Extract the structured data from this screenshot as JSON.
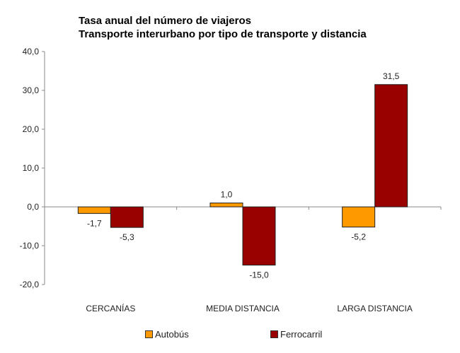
{
  "chart_data": {
    "type": "bar",
    "title": "Tasa anual del número de viajeros",
    "subtitle": "Transporte interurbano por tipo de transporte y distancia",
    "categories": [
      "CERCANÍAS",
      "MEDIA DISTANCIA",
      "LARGA DISTANCIA"
    ],
    "series": [
      {
        "name": "Autobús",
        "color": "#FF9900",
        "values": [
          -1.7,
          1.0,
          -5.2
        ],
        "labels": [
          "-1,7",
          "1,0",
          "-5,2"
        ]
      },
      {
        "name": "Ferrocarril",
        "color": "#990000",
        "values": [
          -5.3,
          -15.0,
          31.5
        ],
        "labels": [
          "-5,3",
          "-15,0",
          "31,5"
        ]
      }
    ],
    "ylim": [
      -20,
      40
    ],
    "yticks": [
      40,
      30,
      20,
      10,
      0,
      -10,
      -20
    ],
    "ytick_labels": [
      "40,0",
      "30,0",
      "20,0",
      "10,0",
      "0,0",
      "-10,0",
      "-20,0"
    ],
    "xlabel": "",
    "ylabel": "",
    "grid": false,
    "legend_position": "bottom"
  }
}
